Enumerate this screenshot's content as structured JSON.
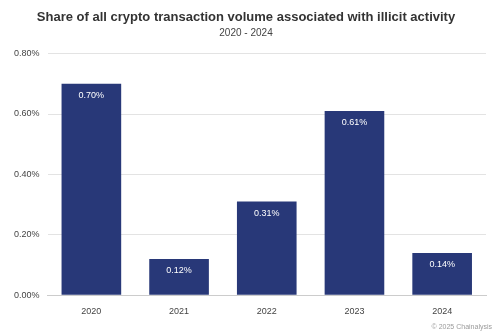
{
  "chart_data": {
    "type": "bar",
    "title": "Share of all crypto transaction volume associated with illicit activity",
    "subtitle": "2020 - 2024",
    "categories": [
      "2020",
      "2021",
      "2022",
      "2023",
      "2024"
    ],
    "values": [
      0.7,
      0.12,
      0.31,
      0.61,
      0.14
    ],
    "value_labels": [
      "0.70%",
      "0.12%",
      "0.31%",
      "0.61%",
      "0.14%"
    ],
    "data_labels": true,
    "color": "#283878",
    "ylim": [
      0,
      0.8
    ],
    "yticks": [
      {
        "value": 0,
        "label": "0.00%"
      },
      {
        "value": 0.2,
        "label": "0.20%"
      },
      {
        "value": 0.4,
        "label": "0.40%"
      },
      {
        "value": 0.6,
        "label": "0.60%"
      },
      {
        "value": 0.8,
        "label": "0.80%"
      }
    ],
    "grid": true,
    "annotations": [
      "© 2025 Chainalysis"
    ]
  }
}
